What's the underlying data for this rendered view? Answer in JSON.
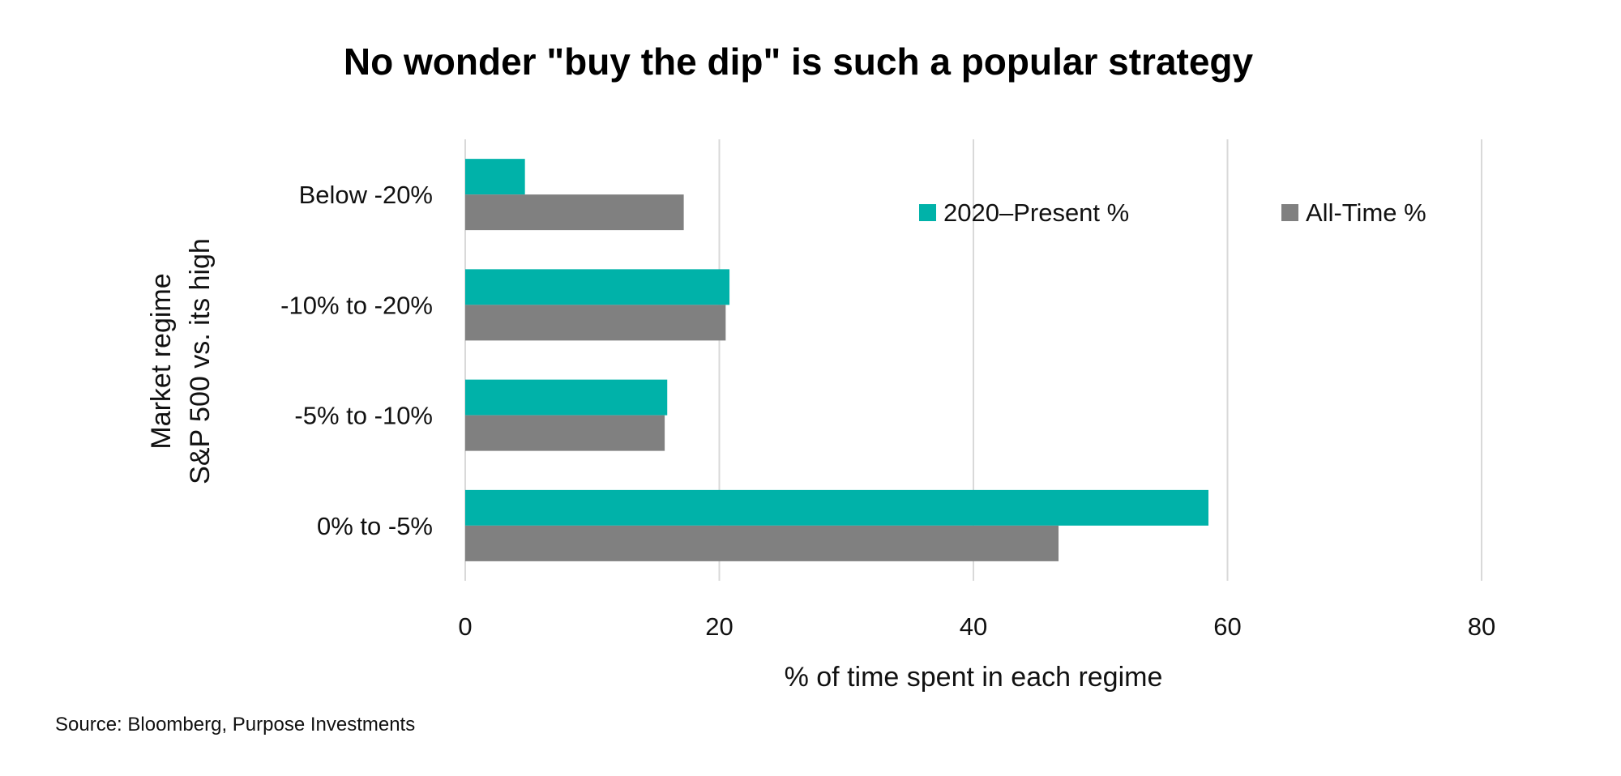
{
  "chart_data": {
    "type": "bar",
    "orientation": "horizontal",
    "title": "No wonder \"buy the dip\" is such a popular strategy",
    "xlabel": "% of time spent in each regime",
    "ylabel": [
      "Market regime",
      "S&P 500 vs. its high"
    ],
    "categories": [
      "Below -20%",
      "-10% to -20%",
      "-5% to -10%",
      "0% to -5%"
    ],
    "series": [
      {
        "name": "2020–Present %",
        "color": "#00B2A9",
        "values": [
          4.7,
          20.8,
          15.9,
          58.5
        ]
      },
      {
        "name": "All-Time %",
        "color": "#808080",
        "values": [
          17.2,
          20.5,
          15.7,
          46.7
        ]
      }
    ],
    "xlim": [
      0,
      80
    ],
    "xticks": [
      0,
      20,
      40,
      60,
      80
    ],
    "grid": "vertical",
    "legend": "top-right",
    "source": "Source: Bloomberg, Purpose Investments"
  }
}
